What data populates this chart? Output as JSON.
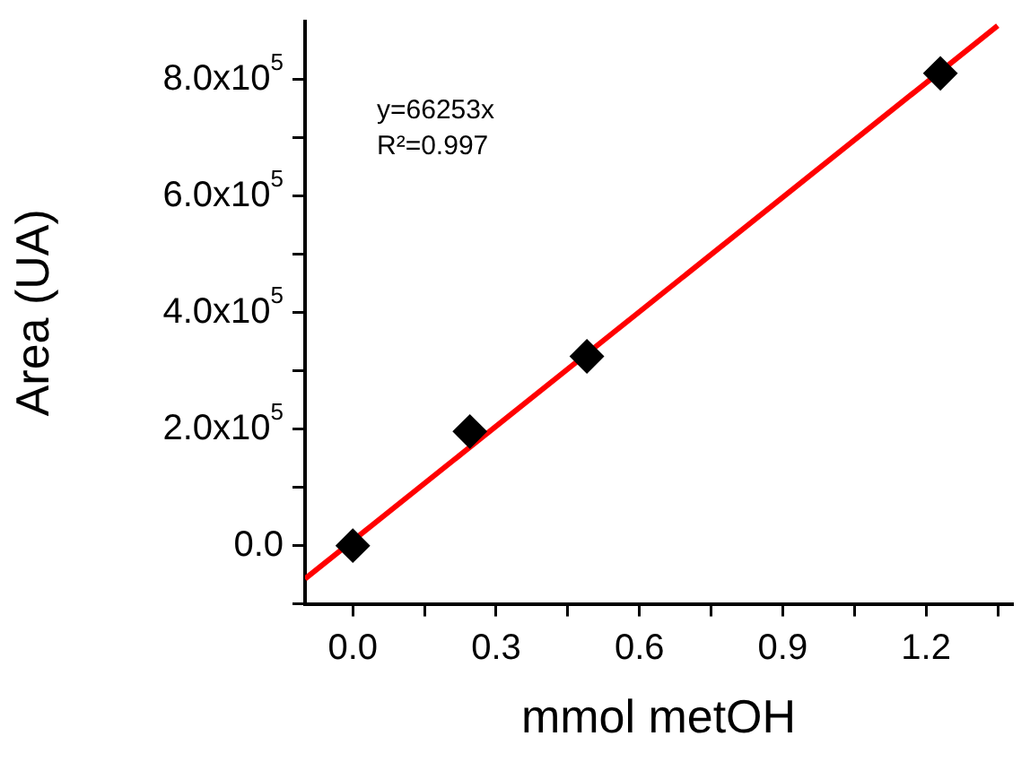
{
  "chart_data": {
    "type": "scatter",
    "xlabel": "mmol metOH",
    "ylabel": "Area (UA)",
    "series": [
      {
        "color": "#000000",
        "marker": "diamond",
        "x": [
          0,
          0.245,
          0.49,
          1.23
        ],
        "values": [
          0,
          196000,
          325000,
          811000
        ]
      },
      {
        "type": "line",
        "color": "#ff0000",
        "marker": "none",
        "line_style": "solid",
        "x": [
          -0.1,
          1.35
        ],
        "values": [
          -57000,
          893000
        ]
      }
    ],
    "xlim": [
      -0.1,
      1.38
    ],
    "xticks": [
      {
        "value": 0,
        "label": "0.0"
      },
      {
        "value": 0.15,
        "label": null
      },
      {
        "value": 0.3,
        "label": "0.3"
      },
      {
        "value": 0.45,
        "label": null
      },
      {
        "value": 0.6,
        "label": "0.6"
      },
      {
        "value": 0.75,
        "label": null
      },
      {
        "value": 0.9,
        "label": "0.9"
      },
      {
        "value": 1.05,
        "label": null
      },
      {
        "value": 1.2,
        "label": "1.2"
      },
      {
        "value": 1.35,
        "label": null
      }
    ],
    "ylim": [
      -100000,
      900000
    ],
    "yticks": [
      {
        "value": -100000,
        "label": null
      },
      {
        "value": 0,
        "label": "0.0"
      },
      {
        "value": 100000,
        "label": null
      },
      {
        "value": 200000,
        "label": "2.0x10$^{5}$"
      },
      {
        "value": 300000,
        "label": null
      },
      {
        "value": 400000,
        "label": "4.0x10$^{5}$"
      },
      {
        "value": 500000,
        "label": null
      },
      {
        "value": 600000,
        "label": "6.0x10$^{5}$"
      },
      {
        "value": 700000,
        "label": null
      },
      {
        "value": 800000,
        "label": "8.0x10$^{5}$"
      }
    ],
    "annotations": [
      "y=66253x",
      "R²=0.997"
    ],
    "grid": false,
    "legend": false
  }
}
